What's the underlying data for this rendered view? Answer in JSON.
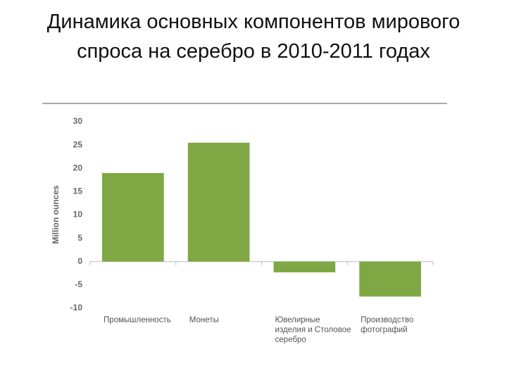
{
  "chart_data": {
    "type": "bar",
    "title": "Динамика основных компонентов мирового спроса на серебро в 2010-2011 годах",
    "y_label": "Million ounces",
    "categories": [
      "Промышленность",
      "Монеты",
      "Ювелирные изделия и Столовое серебро",
      "Производство фотографий"
    ],
    "values": [
      19,
      25.5,
      -2.3,
      -7.5
    ],
    "color": "#7fa743",
    "ylim": [
      -10,
      30
    ],
    "yticks": [
      -10,
      -5,
      0,
      5,
      10,
      15,
      20,
      25,
      30
    ],
    "grid": false
  }
}
